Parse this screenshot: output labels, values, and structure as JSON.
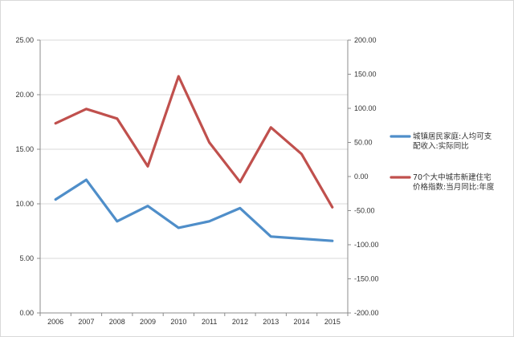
{
  "chart_data": {
    "type": "line",
    "title": "",
    "xlabel": "",
    "ylabel": "",
    "categories": [
      "2006",
      "2007",
      "2008",
      "2009",
      "2010",
      "2011",
      "2012",
      "2013",
      "2014",
      "2015"
    ],
    "y_left": {
      "range": [
        0,
        25
      ],
      "ticks": [
        0,
        5,
        10,
        15,
        20,
        25
      ],
      "tick_labels": [
        "0.00",
        "5.00",
        "10.00",
        "15.00",
        "20.00",
        "25.00"
      ]
    },
    "y_right": {
      "range": [
        -200,
        200
      ],
      "ticks": [
        -200,
        -150,
        -100,
        -50,
        0,
        50,
        100,
        150,
        200
      ],
      "tick_labels": [
        "-200.00",
        "-150.00",
        "-100.00",
        "-50.00",
        "0.00",
        "50.00",
        "100.00",
        "150.00",
        "200.00"
      ]
    },
    "grid": "horizontal",
    "legend_position": "right",
    "series": [
      {
        "name": "城镇居民家庭:人均可支配收入:实际同比",
        "name_lines": [
          "城镇居民家庭:人均可支",
          "配收入:实际同比"
        ],
        "axis": "left",
        "color": "#4f8ec9",
        "values": [
          10.4,
          12.2,
          8.4,
          9.8,
          7.8,
          8.4,
          9.6,
          7.0,
          6.8,
          6.6
        ]
      },
      {
        "name": "70个大中城市新建住宅价格指数:当月同比:年度",
        "name_lines": [
          "70个大中城市新建住宅",
          "价格指数:当月同比:年度"
        ],
        "axis": "right",
        "color": "#c0504d",
        "values": [
          78,
          99,
          85,
          15,
          147,
          50,
          -8,
          72,
          33,
          -45
        ]
      }
    ]
  }
}
